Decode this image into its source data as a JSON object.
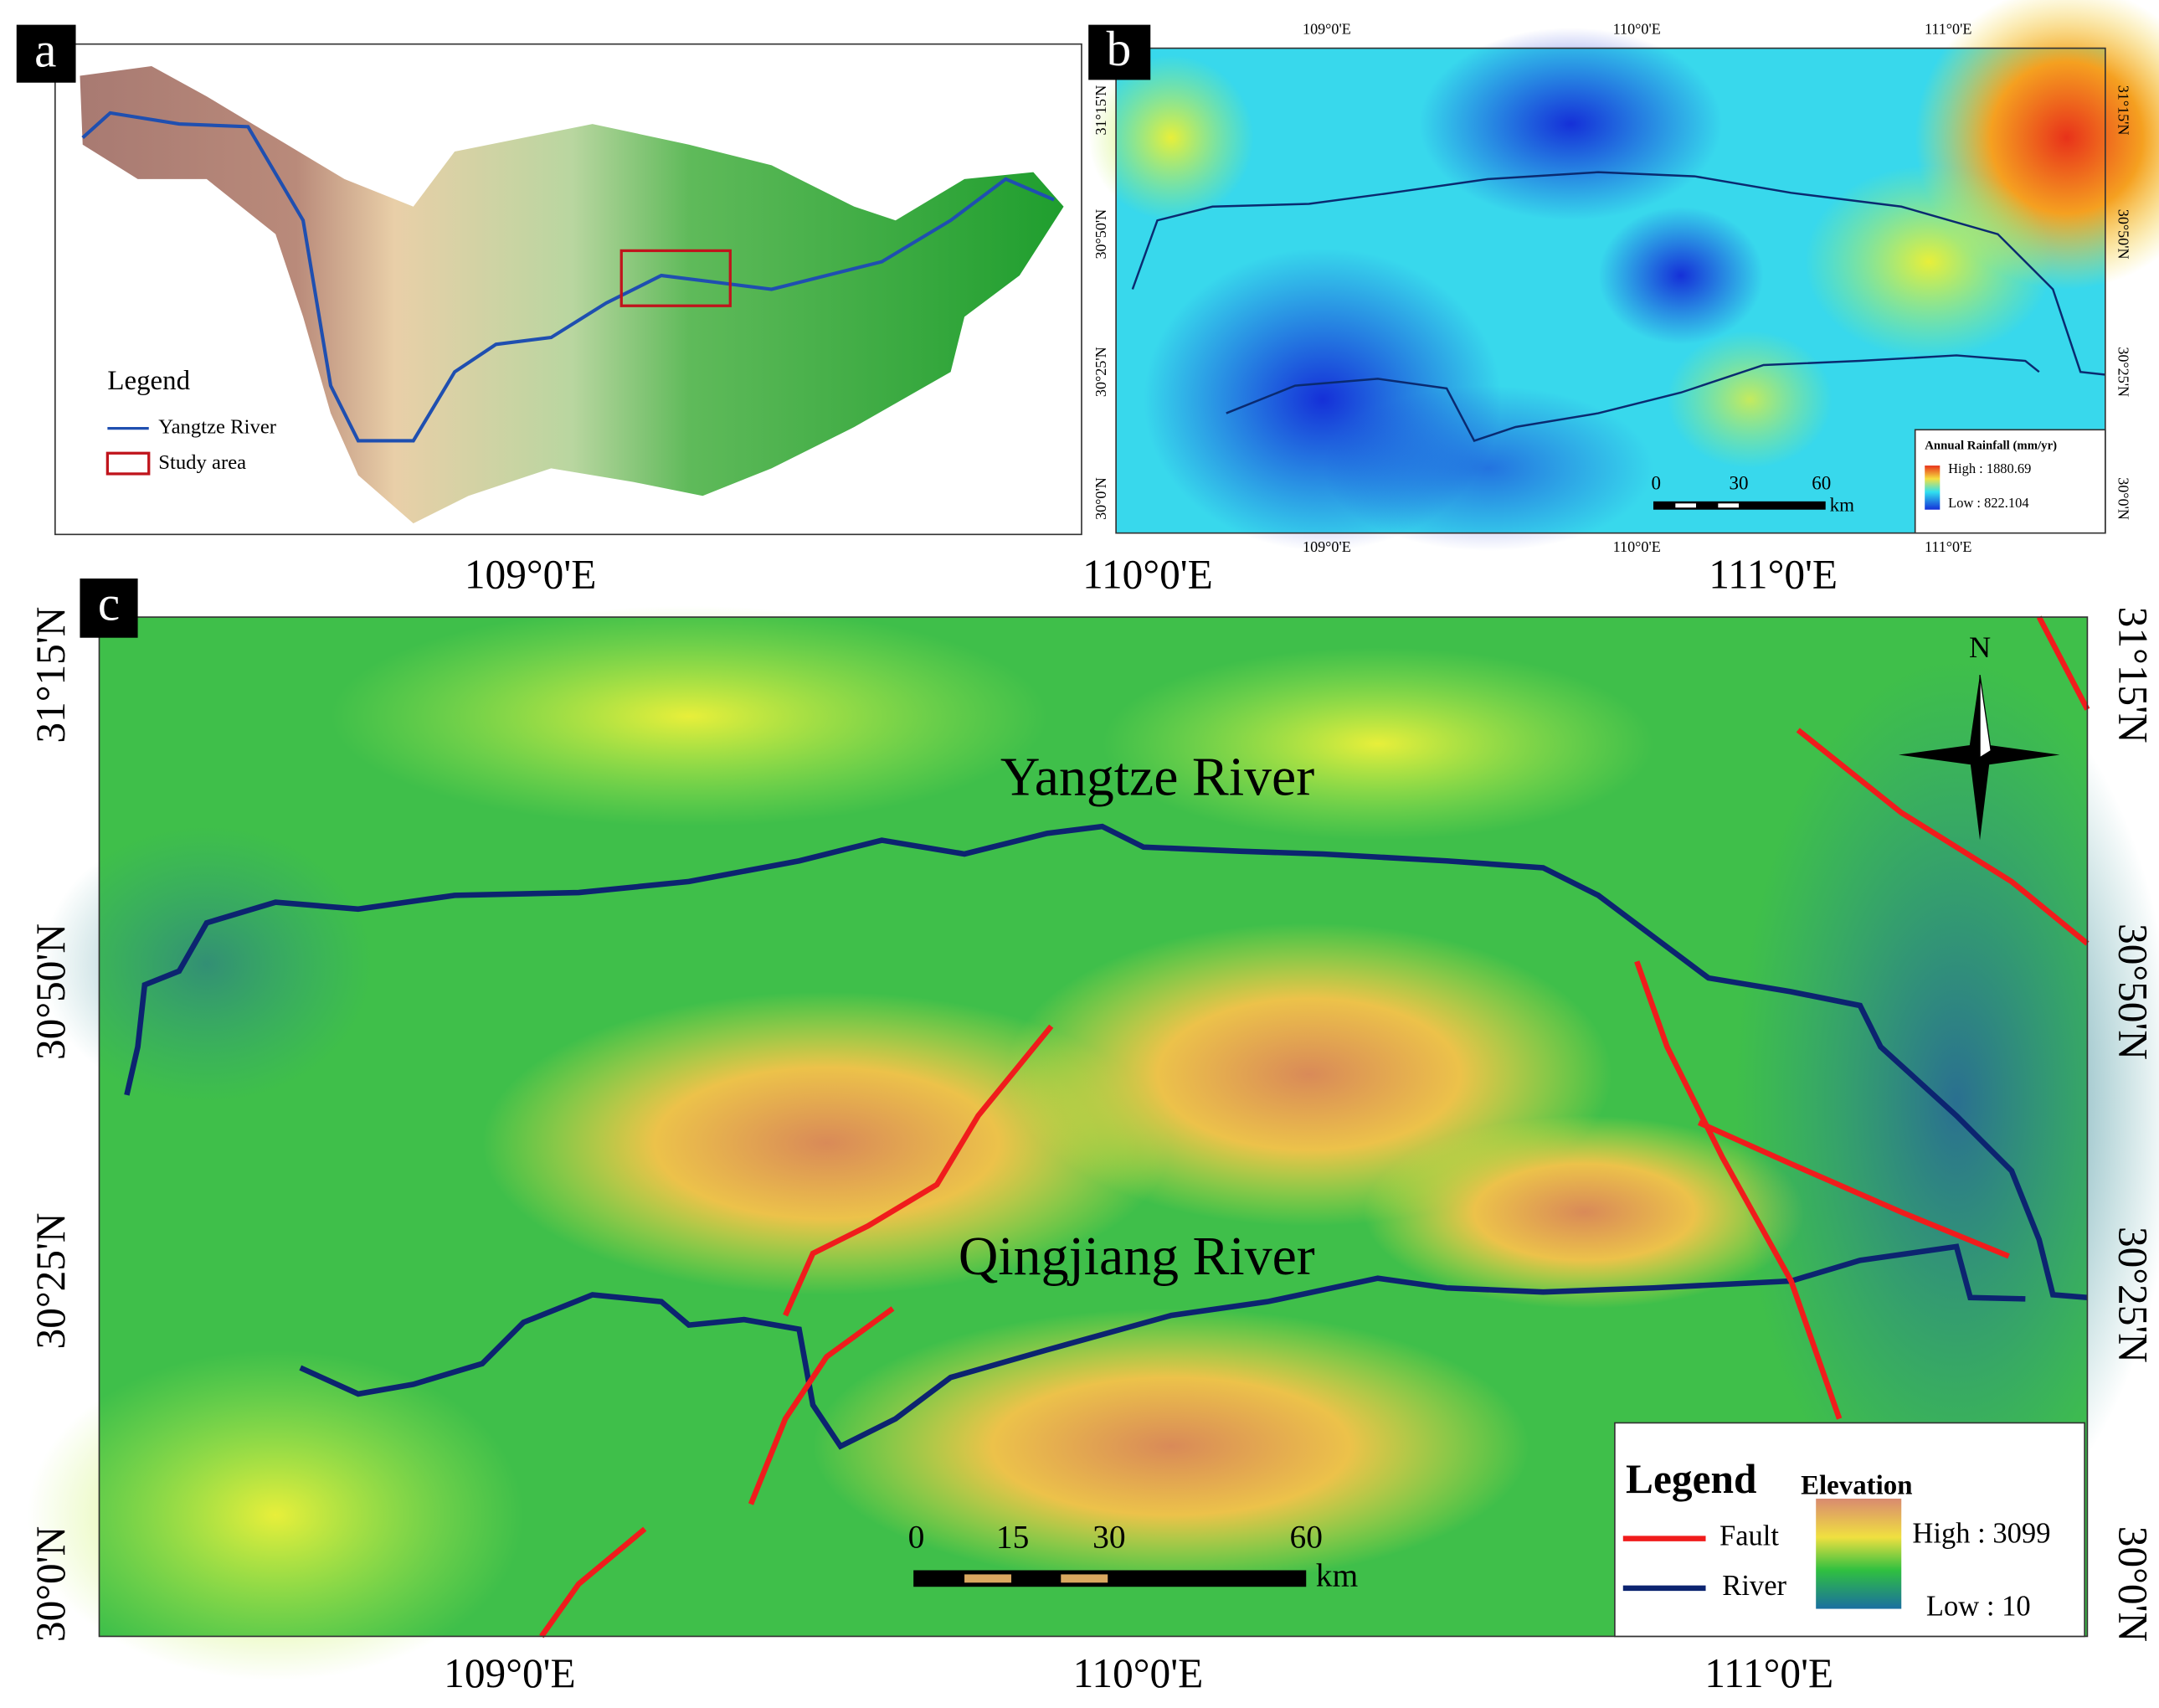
{
  "panels": {
    "a": {
      "label": "a",
      "legend": {
        "title": "Legend",
        "items": [
          "Yangtze River",
          "Study area"
        ]
      }
    },
    "b": {
      "label": "b",
      "top_lon": [
        "109°0'E",
        "110°0'E",
        "111°0'E"
      ],
      "bottom_lon": [
        "109°0'E",
        "110°0'E",
        "111°0'E"
      ],
      "left_lat": [
        "31°15'N",
        "30°50'N",
        "30°25'N",
        "30°0'N"
      ],
      "right_lat": [
        "31°15'N",
        "30°50'N",
        "30°25'N",
        "30°0'N"
      ],
      "scale_bar": {
        "ticks": [
          "0",
          "30",
          "60"
        ],
        "unit": "km"
      },
      "legend": {
        "title": "Annual Rainfall (mm/yr)",
        "high": "High : 1880.69",
        "low": "Low : 822.104"
      }
    },
    "c": {
      "label": "c",
      "top_lon": [
        "109°0'E",
        "110°0'E",
        "111°0'E"
      ],
      "bottom_lon": [
        "109°0'E",
        "110°0'E",
        "111°0'E"
      ],
      "left_lat": [
        "31°15'N",
        "30°50'N",
        "30°25'N",
        "30°0'N"
      ],
      "right_lat": [
        "31°15'N",
        "30°50'N",
        "30°25'N",
        "30°0'N"
      ],
      "rivers": [
        "Yangtze River",
        "Qingjiang River"
      ],
      "north": "N",
      "scale_bar": {
        "ticks": [
          "0",
          "15",
          "30",
          "60"
        ],
        "unit": "km"
      },
      "legend": {
        "title": "Legend",
        "elevation_title": "Elevation",
        "items": [
          "Fault",
          "River"
        ],
        "high": "High : 3099",
        "low": "Low : 10"
      }
    }
  }
}
